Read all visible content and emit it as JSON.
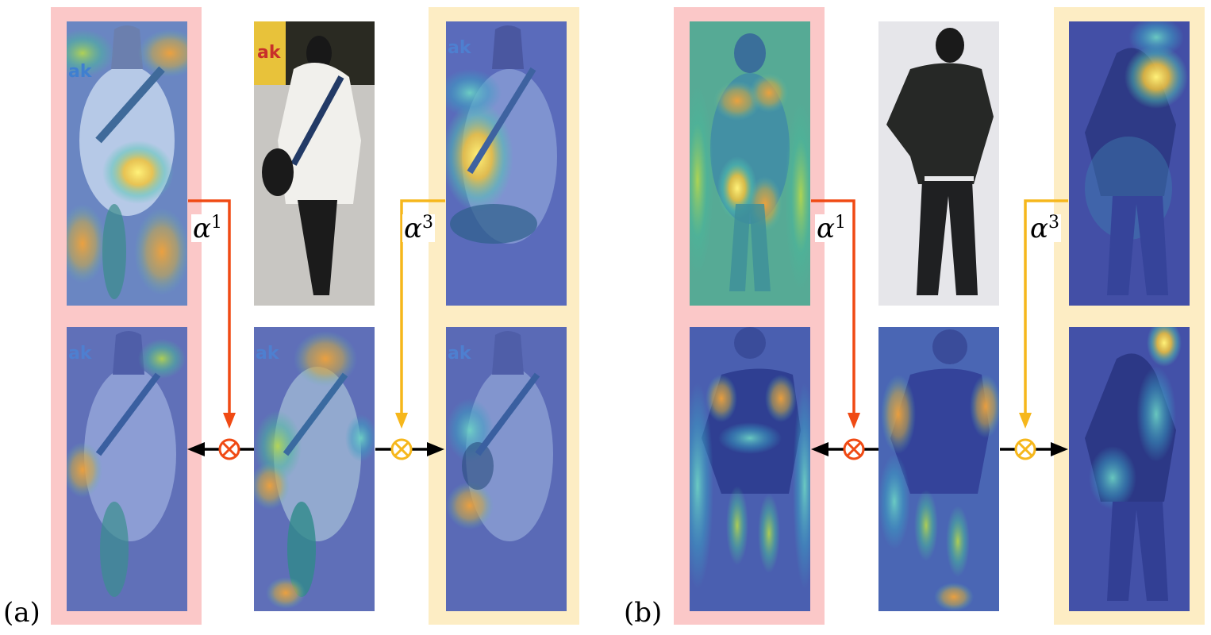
{
  "panels": [
    {
      "label": "(a)",
      "alpha_left": {
        "symbol": "α",
        "sup": "1"
      },
      "alpha_right": {
        "symbol": "α",
        "sup": "3"
      }
    },
    {
      "label": "(b)",
      "alpha_left": {
        "symbol": "α",
        "sup": "1"
      },
      "alpha_right": {
        "symbol": "α",
        "sup": "3"
      }
    }
  ],
  "colors": {
    "left_frame": "#fbc8c8",
    "right_frame": "#fdedc4",
    "left_arrow": "#f04a14",
    "right_arrow": "#f6b71c",
    "heat_bg": "#4f5fb0"
  },
  "icons": {
    "multiply": "circled-times-icon",
    "arrow": "arrow-head-icon"
  }
}
